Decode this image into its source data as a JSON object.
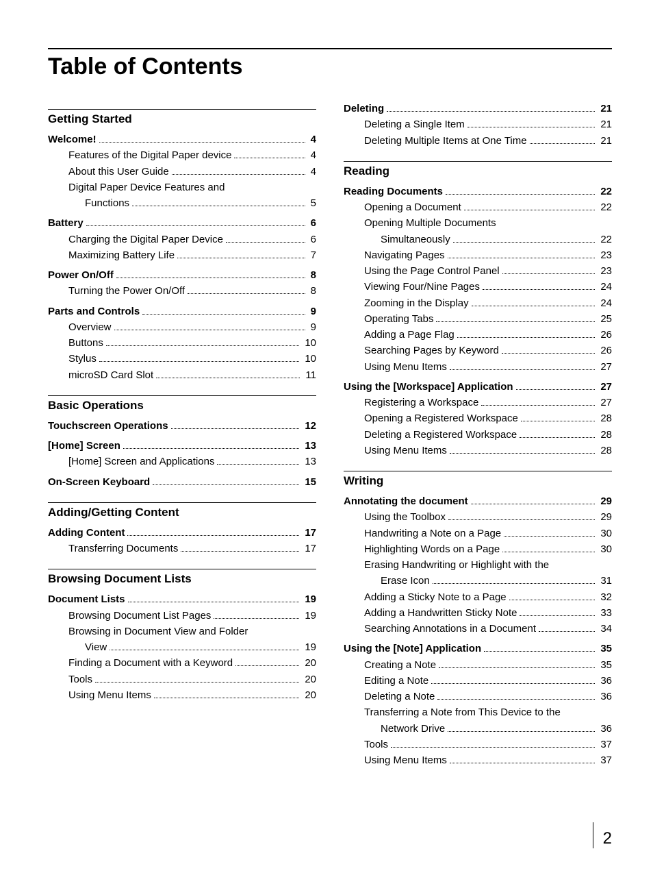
{
  "title": "Table of Contents",
  "page_number": "2",
  "left": {
    "sections": [
      {
        "title": "Getting Started",
        "groups": [
          {
            "l1": {
              "t": "Welcome!",
              "p": "4"
            },
            "l2": [
              {
                "t": "Features of the Digital Paper device",
                "p": "4"
              },
              {
                "t": "About this User Guide",
                "p": "4"
              },
              {
                "wrap": true,
                "t1": "Digital Paper Device Features and",
                "t2": "Functions",
                "p": "5"
              }
            ]
          },
          {
            "l1": {
              "t": "Battery",
              "p": "6"
            },
            "l2": [
              {
                "t": "Charging the Digital Paper Device",
                "p": "6"
              },
              {
                "t": "Maximizing Battery Life",
                "p": "7"
              }
            ]
          },
          {
            "l1": {
              "t": "Power On/Off",
              "p": "8"
            },
            "l2": [
              {
                "t": "Turning the Power On/Off",
                "p": "8"
              }
            ]
          },
          {
            "l1": {
              "t": "Parts and Controls",
              "p": "9"
            },
            "l2": [
              {
                "t": "Overview",
                "p": "9"
              },
              {
                "t": "Buttons",
                "p": "10"
              },
              {
                "t": "Stylus",
                "p": "10"
              },
              {
                "t": "microSD Card Slot",
                "p": "11"
              }
            ]
          }
        ]
      },
      {
        "title": "Basic Operations",
        "groups": [
          {
            "l1": {
              "t": "Touchscreen Operations",
              "p": "12"
            },
            "l2": []
          },
          {
            "l1": {
              "t": "[Home] Screen",
              "p": "13"
            },
            "l2": [
              {
                "t": "[Home] Screen and Applications",
                "p": "13"
              }
            ]
          },
          {
            "l1": {
              "t": "On-Screen Keyboard",
              "p": "15"
            },
            "l2": []
          }
        ]
      },
      {
        "title": "Adding/Getting Content",
        "groups": [
          {
            "l1": {
              "t": "Adding Content",
              "p": "17"
            },
            "l2": [
              {
                "t": "Transferring Documents",
                "p": "17"
              }
            ]
          }
        ]
      },
      {
        "title": "Browsing Document Lists",
        "groups": [
          {
            "l1": {
              "t": "Document Lists",
              "p": "19"
            },
            "l2": [
              {
                "t": "Browsing Document List Pages",
                "p": "19"
              },
              {
                "wrap": true,
                "t1": "Browsing in Document View and Folder",
                "t2": "View",
                "p": "19"
              },
              {
                "t": "Finding a Document with a Keyword",
                "p": "20"
              },
              {
                "t": "Tools",
                "p": "20"
              },
              {
                "t": "Using Menu Items",
                "p": "20"
              }
            ]
          }
        ]
      }
    ]
  },
  "right": {
    "pre_groups": [
      {
        "l1": {
          "t": "Deleting",
          "p": "21"
        },
        "l2": [
          {
            "t": "Deleting a Single Item",
            "p": "21"
          },
          {
            "t": "Deleting Multiple Items at One Time",
            "p": "21"
          }
        ]
      }
    ],
    "sections": [
      {
        "title": "Reading",
        "groups": [
          {
            "l1": {
              "t": "Reading Documents",
              "p": "22"
            },
            "l2": [
              {
                "t": "Opening a Document",
                "p": "22"
              },
              {
                "wrap": true,
                "t1": "Opening Multiple Documents",
                "t2": "Simultaneously",
                "p": "22"
              },
              {
                "t": "Navigating Pages",
                "p": "23"
              },
              {
                "t": "Using the Page Control Panel",
                "p": "23"
              },
              {
                "t": "Viewing Four/Nine Pages",
                "p": "24"
              },
              {
                "t": "Zooming in the Display",
                "p": "24"
              },
              {
                "t": "Operating Tabs",
                "p": "25"
              },
              {
                "t": "Adding a Page Flag",
                "p": "26"
              },
              {
                "t": "Searching Pages by Keyword",
                "p": "26"
              },
              {
                "t": "Using Menu Items",
                "p": "27"
              }
            ]
          },
          {
            "l1": {
              "t": "Using the [Workspace] Application",
              "p": "27"
            },
            "l2": [
              {
                "t": "Registering a Workspace",
                "p": "27"
              },
              {
                "t": "Opening a Registered Workspace",
                "p": "28"
              },
              {
                "t": "Deleting a Registered Workspace",
                "p": "28"
              },
              {
                "t": "Using Menu Items",
                "p": "28"
              }
            ]
          }
        ]
      },
      {
        "title": "Writing",
        "groups": [
          {
            "l1": {
              "t": "Annotating the document",
              "p": "29"
            },
            "l2": [
              {
                "t": "Using the Toolbox",
                "p": "29"
              },
              {
                "t": "Handwriting a Note on a Page",
                "p": "30"
              },
              {
                "t": "Highlighting Words on a Page",
                "p": "30"
              },
              {
                "wrap": true,
                "t1": "Erasing Handwriting or Highlight with the",
                "t2": "Erase Icon",
                "p": "31"
              },
              {
                "t": "Adding a Sticky Note to a Page",
                "p": "32"
              },
              {
                "t": "Adding a Handwritten Sticky Note",
                "p": "33"
              },
              {
                "t": "Searching Annotations in a Document",
                "p": "34"
              }
            ]
          },
          {
            "l1": {
              "t": "Using the [Note] Application",
              "p": "35"
            },
            "l2": [
              {
                "t": "Creating a Note",
                "p": "35"
              },
              {
                "t": "Editing a Note",
                "p": "36"
              },
              {
                "t": "Deleting a Note",
                "p": "36"
              },
              {
                "wrap": true,
                "t1": "Transferring a Note from This Device to the",
                "t2": "Network Drive",
                "p": "36"
              },
              {
                "t": "Tools",
                "p": "37"
              },
              {
                "t": "Using Menu Items",
                "p": "37"
              }
            ]
          }
        ]
      }
    ]
  }
}
